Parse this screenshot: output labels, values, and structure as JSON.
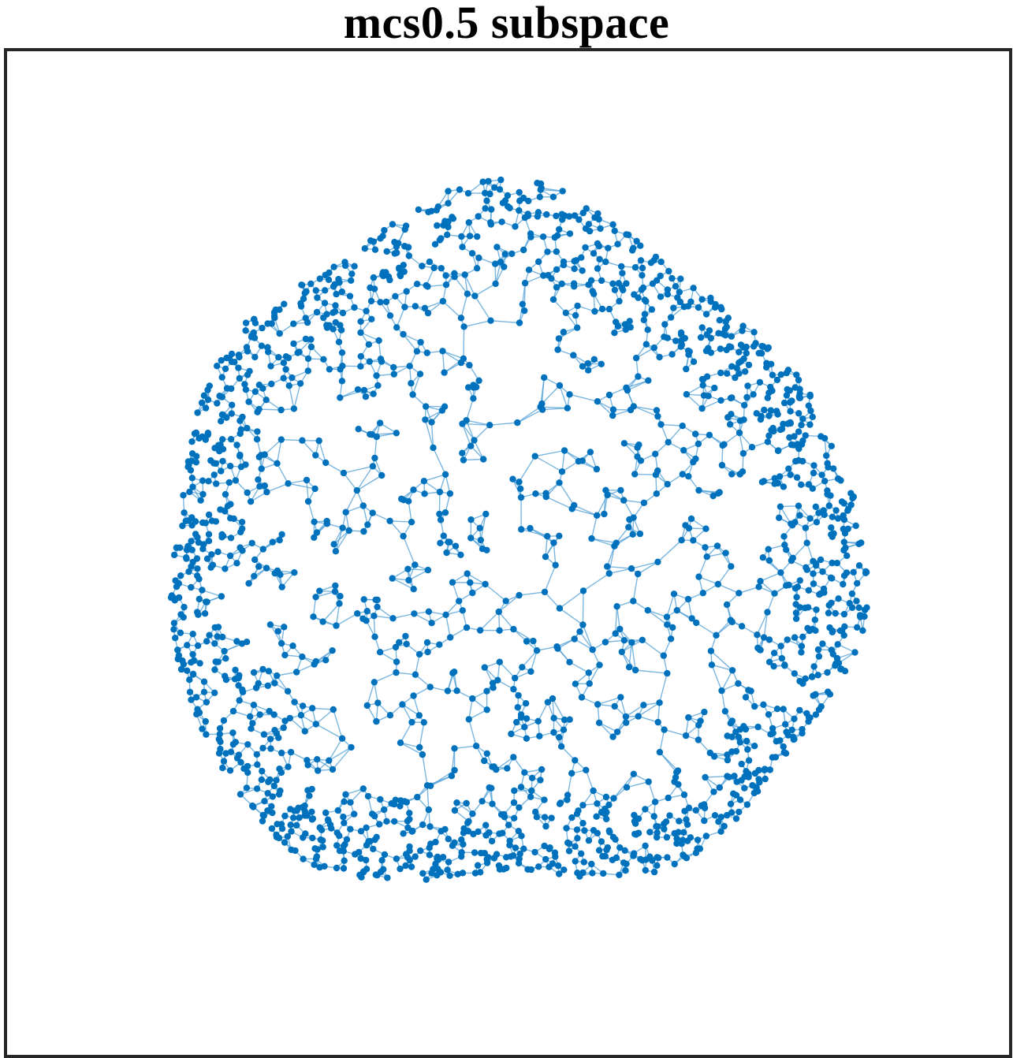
{
  "title": "mcs0.5 subspace",
  "graph": {
    "node_color": "#0072bd",
    "edge_color": "#4d9dd6"
  }
}
